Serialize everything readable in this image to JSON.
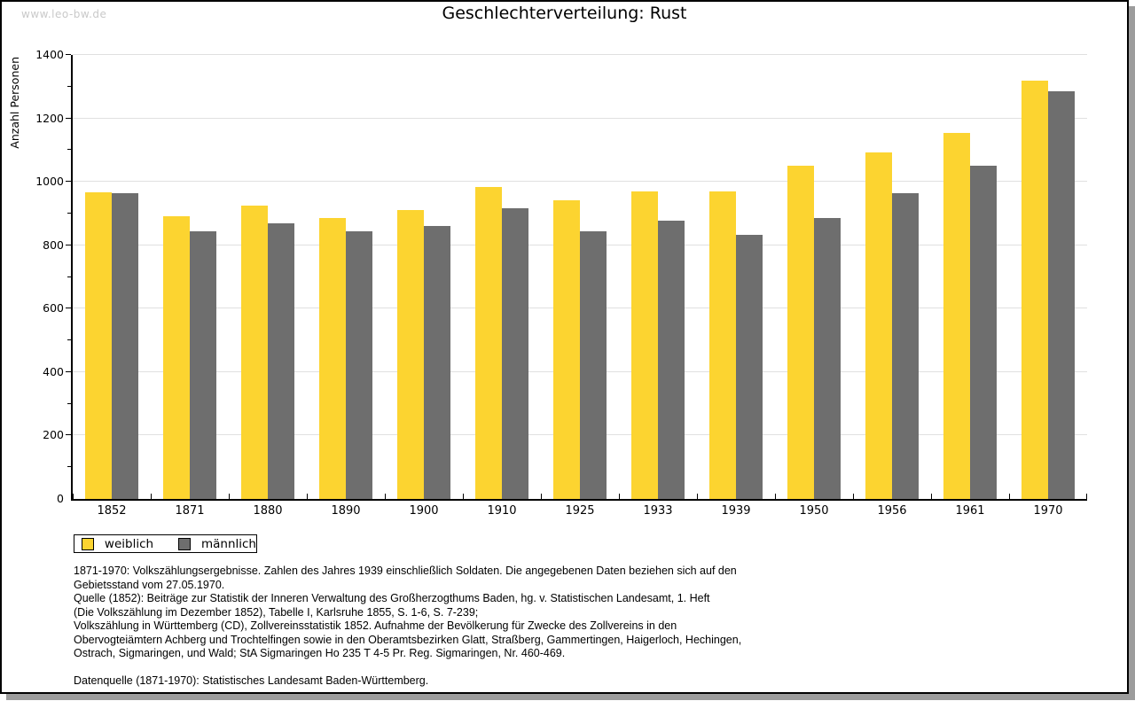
{
  "page": {
    "watermark": "www.leo-bw.de",
    "title": "Geschlechterverteilung: Rust"
  },
  "chart_data": {
    "type": "bar",
    "title": "Geschlechterverteilung: Rust",
    "xlabel": "",
    "ylabel": "Anzahl Personen",
    "ylim": [
      0,
      1400
    ],
    "ytick_major_interval": 200,
    "ytick_minor_interval": 100,
    "grid": true,
    "legend_position": "bottom-left",
    "categories": [
      "1852",
      "1871",
      "1880",
      "1890",
      "1900",
      "1910",
      "1925",
      "1933",
      "1939",
      "1950",
      "1956",
      "1961",
      "1970"
    ],
    "series": [
      {
        "name": "weiblich",
        "color": "#FCD430",
        "values": [
          966,
          892,
          926,
          885,
          911,
          985,
          942,
          970,
          970,
          1052,
          1094,
          1154,
          1318
        ]
      },
      {
        "name": "männlich",
        "color": "#6E6E6E",
        "values": [
          963,
          845,
          870,
          843,
          860,
          917,
          843,
          877,
          833,
          886,
          963,
          1050,
          1285
        ]
      }
    ]
  },
  "legend": {
    "items": [
      {
        "label": "weiblich",
        "color": "#FCD430"
      },
      {
        "label": "männlich",
        "color": "#6E6E6E"
      }
    ]
  },
  "footnotes": {
    "source_lines": [
      "1871-1970: Volkszählungsergebnisse. Zahlen des Jahres 1939 einschließlich Soldaten. Die angegebenen Daten beziehen sich auf den",
      "Gebietsstand vom 27.05.1970.",
      "Quelle (1852): Beiträge zur Statistik der Inneren Verwaltung des Großherzogthums Baden, hg. v. Statistischen Landesamt, 1. Heft",
      "(Die Volkszählung im Dezember 1852), Tabelle I, Karlsruhe 1855, S. 1-6, S. 7-239;",
      "Volkszählung in Württemberg (CD), Zollvereinsstatistik 1852. Aufnahme der Bevölkerung für Zwecke des Zollvereins in den",
      "Obervogteiämtern Achberg und Trochtelfingen sowie in den Oberamtsbezirken Glatt, Straßberg, Gammertingen, Haigerloch, Hechingen,",
      "Ostrach, Sigmaringen, und Wald; StA Sigmaringen Ho 235 T 4-5 Pr. Reg. Sigmaringen, Nr. 460-469."
    ],
    "datasource": "Datenquelle (1871-1970): Statistisches Landesamt Baden-Württemberg."
  },
  "colors": {
    "weiblich": "#FCD430",
    "maennlich": "#6E6E6E",
    "gridline": "#E0E0E0",
    "watermark": "#C9C9C9",
    "shadow": "#9C9C9C"
  }
}
